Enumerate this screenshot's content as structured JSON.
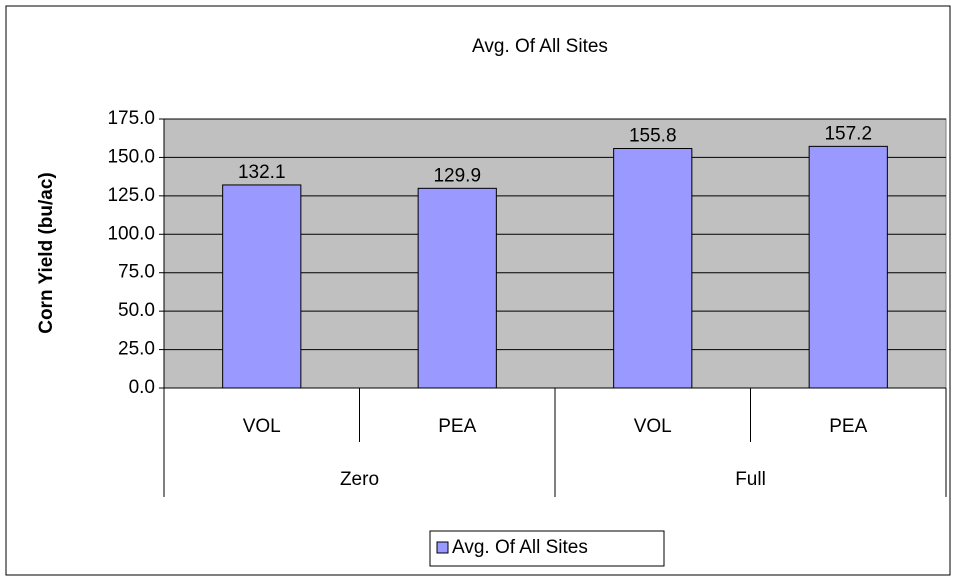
{
  "chart_data": {
    "type": "bar",
    "title": "Avg. Of All Sites",
    "y_label": "Corn Yield (bu/ac)",
    "category_groups": [
      {
        "name": "Zero",
        "categories": [
          "VOL",
          "PEA"
        ]
      },
      {
        "name": "Full",
        "categories": [
          "VOL",
          "PEA"
        ]
      }
    ],
    "series": [
      {
        "name": "Avg. Of All Sites",
        "color": "#9999ff",
        "values": [
          132.1,
          129.9,
          155.8,
          157.2
        ]
      }
    ],
    "ylim": [
      0,
      175
    ],
    "yticks": [
      {
        "value": 0,
        "label": "0.0"
      },
      {
        "value": 25,
        "label": "25.0"
      },
      {
        "value": 50,
        "label": "50.0"
      },
      {
        "value": 75,
        "label": "75.0"
      },
      {
        "value": 100,
        "label": "100.0"
      },
      {
        "value": 125,
        "label": "125.0"
      },
      {
        "value": 150,
        "label": "150.0"
      },
      {
        "value": 175,
        "label": "175.0"
      }
    ],
    "grid": true,
    "plot_background": "#c0c0c0",
    "legend": "bottom"
  }
}
